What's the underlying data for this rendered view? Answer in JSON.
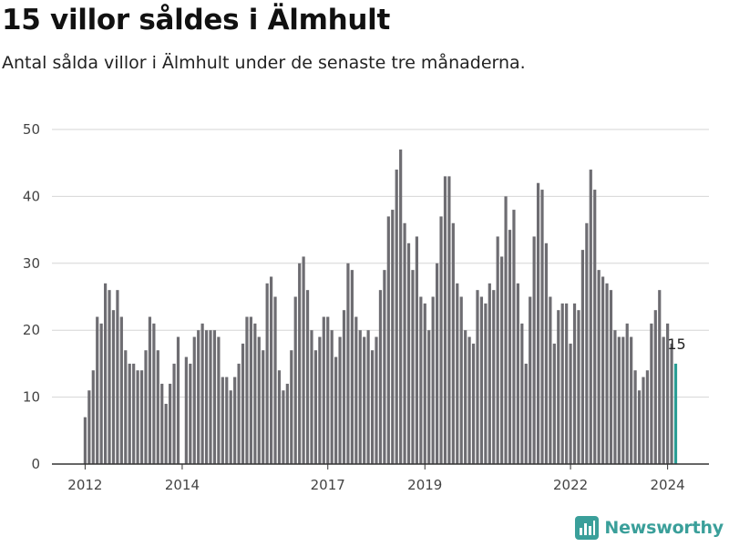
{
  "title": "15 villor såldes i Älmhult",
  "subtitle": "Antal sålda villor i Älmhult under de senaste tre månaderna.",
  "brand": {
    "name": "Newsworthy"
  },
  "colors": {
    "bar": "#6e6d72",
    "highlight": "#2a9d95",
    "grid": "#d6d6d6",
    "axis": "#333333",
    "brand": "#3a9f9a"
  },
  "chart_data": {
    "type": "bar",
    "title": "15 villor såldes i Älmhult",
    "subtitle": "Antal sålda villor i Älmhult under de senaste tre månaderna.",
    "xlabel": "",
    "ylabel": "",
    "ylim": [
      0,
      50
    ],
    "yticks": [
      0,
      10,
      20,
      30,
      40,
      50
    ],
    "xticks": [
      {
        "label": "2012",
        "index": 0
      },
      {
        "label": "2014",
        "index": 24
      },
      {
        "label": "2017",
        "index": 60
      },
      {
        "label": "2019",
        "index": 84
      },
      {
        "label": "2022",
        "index": 120
      },
      {
        "label": "2024",
        "index": 144
      }
    ],
    "x_start": "2012-01",
    "x_step": "1 month",
    "grid": true,
    "highlight_last": true,
    "last_value_label": "15",
    "values": [
      7,
      11,
      14,
      22,
      21,
      27,
      26,
      23,
      26,
      22,
      17,
      15,
      15,
      14,
      14,
      17,
      22,
      21,
      17,
      12,
      9,
      12,
      15,
      19,
      0,
      16,
      15,
      19,
      20,
      21,
      20,
      20,
      20,
      19,
      13,
      13,
      11,
      13,
      15,
      18,
      22,
      22,
      21,
      19,
      17,
      27,
      28,
      25,
      14,
      11,
      12,
      17,
      25,
      30,
      31,
      26,
      20,
      17,
      19,
      22,
      22,
      20,
      16,
      19,
      23,
      30,
      29,
      22,
      20,
      19,
      20,
      17,
      19,
      26,
      29,
      37,
      38,
      44,
      47,
      36,
      33,
      29,
      34,
      25,
      24,
      20,
      25,
      30,
      37,
      43,
      43,
      36,
      27,
      25,
      20,
      19,
      18,
      26,
      25,
      24,
      27,
      26,
      34,
      31,
      40,
      35,
      38,
      27,
      21,
      15,
      25,
      34,
      42,
      41,
      33,
      25,
      18,
      23,
      24,
      24,
      18,
      24,
      23,
      32,
      36,
      44,
      41,
      29,
      28,
      27,
      26,
      20,
      19,
      19,
      21,
      19,
      14,
      11,
      13,
      14,
      21,
      23,
      26,
      19,
      21,
      18,
      15
    ]
  }
}
